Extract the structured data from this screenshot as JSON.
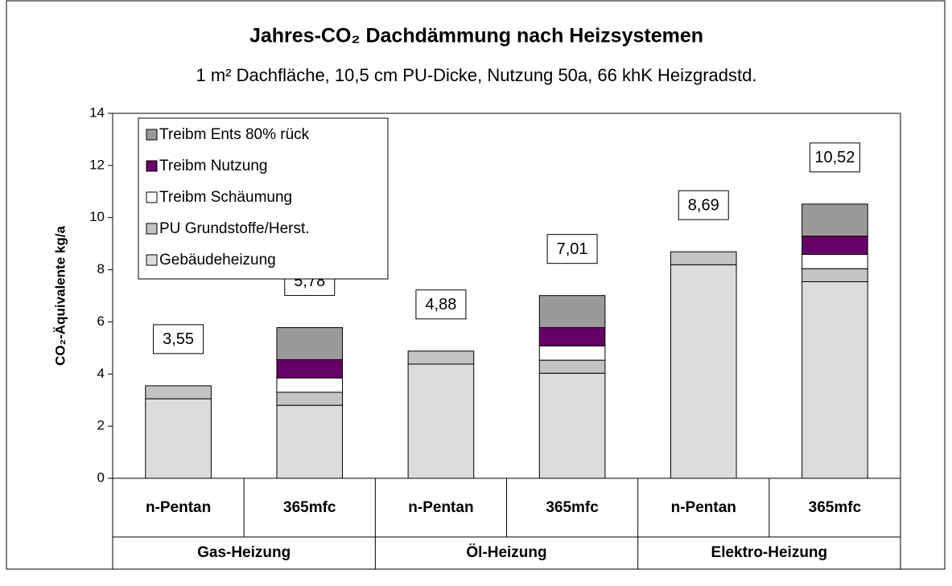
{
  "chart_data": {
    "type": "stacked_bar",
    "title": "Jahres-CO₂ Dachdämmung nach Heizsystemen",
    "subtitle": "1 m² Dachfläche, 10,5 cm PU-Dicke, Nutzung 50a, 66 khK Heizgradstd.",
    "y_label": "CO₂-Äquivalente kg/a",
    "categories": [
      "n-Pentan",
      "365mfc",
      "n-Pentan",
      "365mfc",
      "n-Pentan",
      "365mfc"
    ],
    "groups": [
      "Gas-Heizung",
      "Öl-Heizung",
      "Elektro-Heizung"
    ],
    "series": [
      {
        "name": "Gebäudeheizung",
        "color": "#dcdcdc",
        "values": [
          3.05,
          2.8,
          4.38,
          4.03,
          8.19,
          7.54
        ]
      },
      {
        "name": "PU Grundstoffe/Herst.",
        "color": "#c4c4c4",
        "values": [
          0.5,
          0.5,
          0.5,
          0.5,
          0.5,
          0.5
        ]
      },
      {
        "name": "Treibm Schäumung",
        "color": "#ffffff",
        "values": [
          0,
          0.55,
          0,
          0.55,
          0,
          0.55
        ]
      },
      {
        "name": "Treibm Nutzung",
        "color": "#660066",
        "values": [
          0,
          0.7,
          0,
          0.7,
          0,
          0.7
        ]
      },
      {
        "name": "Treibm Ents 80% rück",
        "color": "#9a9a9a",
        "values": [
          0,
          1.23,
          0,
          1.23,
          0,
          1.23
        ]
      }
    ],
    "totals": [
      3.55,
      5.78,
      4.88,
      7.01,
      8.69,
      10.52
    ],
    "total_labels": [
      "3,55",
      "5,78",
      "4,88",
      "7,01",
      "8,69",
      "10,52"
    ],
    "ylim": [
      0,
      14
    ],
    "yticks": [
      0,
      2,
      4,
      6,
      8,
      10,
      12,
      14
    ]
  }
}
